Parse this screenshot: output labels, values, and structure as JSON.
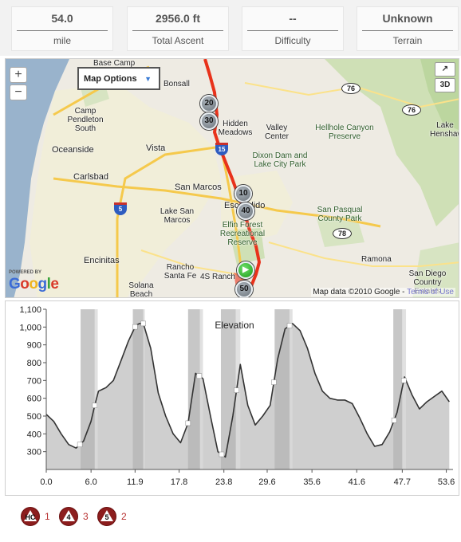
{
  "stats": [
    {
      "value": "54.0",
      "label": "mile"
    },
    {
      "value": "2956.0 ft",
      "label": "Total Ascent"
    },
    {
      "value": "--",
      "label": "Difficulty"
    },
    {
      "value": "Unknown",
      "label": "Terrain"
    }
  ],
  "map": {
    "options_label": "Map Options",
    "zoom_in": "+",
    "zoom_out": "−",
    "expand_label": "↗",
    "view_3d_label": "3D",
    "powered_by": "POWERED BY",
    "google_logo": "Google",
    "attribution": "Map data ©2010 Google - ",
    "terms": "Terms of Use",
    "places": [
      {
        "text": "Base Camp"
      },
      {
        "text": "Bonsall"
      },
      {
        "text": "Camp Pendleton South"
      },
      {
        "text": "Oceanside"
      },
      {
        "text": "Vista"
      },
      {
        "text": "Carlsbad"
      },
      {
        "text": "San Marcos"
      },
      {
        "text": "Lake San Marcos"
      },
      {
        "text": "Encinitas"
      },
      {
        "text": "Rancho Santa Fe"
      },
      {
        "text": "4S Ranch"
      },
      {
        "text": "Solana Beach"
      },
      {
        "text": "Hidden Meadows"
      },
      {
        "text": "Valley Center"
      },
      {
        "text": "Dixon Dam and Lake City Park"
      },
      {
        "text": "Escondido"
      },
      {
        "text": "Elfin Forest Recreational Reserve"
      },
      {
        "text": "Hellhole Canyon Preserve"
      },
      {
        "text": "San Pasqual County Park"
      },
      {
        "text": "Ramona"
      },
      {
        "text": "San Diego Country Estates"
      },
      {
        "text": "Lake Henshaw"
      }
    ],
    "markers": [
      "20",
      "30",
      "10",
      "40",
      "50"
    ],
    "highways": [
      "76",
      "76",
      "78"
    ],
    "interstates": [
      "15",
      "5"
    ]
  },
  "chart_data": {
    "type": "area",
    "title": "Elevation",
    "xlabel": "",
    "ylabel": "",
    "x_ticks": [
      0.0,
      6.0,
      11.9,
      17.8,
      23.8,
      29.6,
      35.6,
      41.6,
      47.7,
      53.6
    ],
    "x_tick_labels": [
      "0.0",
      "6.0",
      "11.9",
      "17.8",
      "23.8",
      "29.6",
      "35.6",
      "41.6",
      "47.7",
      "53.6"
    ],
    "y_ticks": [
      300,
      400,
      500,
      600,
      700,
      800,
      900,
      1000,
      1100
    ],
    "y_tick_labels": [
      "300",
      "400",
      "500",
      "600",
      "700",
      "800",
      "900",
      "1,000",
      "1,100"
    ],
    "xlim": [
      0,
      54.5
    ],
    "ylim": [
      200,
      1100
    ],
    "grid": false,
    "series": [
      {
        "x": [
          0,
          1,
          2,
          3,
          4,
          5,
          6,
          6.5,
          7,
          8,
          9,
          10,
          11,
          12,
          12.5,
          13,
          14,
          15,
          16,
          17,
          18,
          19,
          20,
          21,
          22,
          23,
          24,
          25,
          26,
          27,
          28,
          29,
          30,
          31,
          32,
          33,
          34,
          35,
          36,
          37,
          38,
          39,
          40,
          41,
          42,
          43,
          44,
          45,
          46,
          47,
          48,
          49,
          50,
          51,
          52,
          53,
          54
        ],
        "y": [
          510,
          470,
          400,
          340,
          320,
          360,
          470,
          560,
          640,
          660,
          700,
          810,
          920,
          1010,
          1020,
          1020,
          880,
          630,
          500,
          400,
          350,
          460,
          740,
          710,
          500,
          300,
          270,
          500,
          790,
          560,
          450,
          500,
          560,
          820,
          990,
          1020,
          980,
          880,
          740,
          640,
          600,
          590,
          590,
          570,
          490,
          400,
          330,
          340,
          410,
          520,
          720,
          620,
          540,
          580,
          610,
          640,
          580
        ]
      }
    ],
    "shaded_bands": [
      [
        4.6,
        6.5
      ],
      [
        11.6,
        13.0
      ],
      [
        19.0,
        20.6
      ],
      [
        23.4,
        25.4
      ],
      [
        30.6,
        32.6
      ],
      [
        46.5,
        47.7
      ]
    ],
    "light_bands": [
      [
        6.5,
        6.9
      ],
      [
        13.0,
        13.2
      ],
      [
        20.6,
        21.0
      ],
      [
        25.4,
        26.0
      ],
      [
        32.6,
        33.0
      ],
      [
        47.7,
        48.2
      ]
    ],
    "waypoints_x": [
      4.5,
      6.5,
      11.9,
      13.0,
      19.0,
      20.5,
      23.5,
      25.5,
      30.5,
      32.6,
      46.6,
      47.9
    ]
  },
  "climbs": [
    {
      "category": "HC",
      "icon": "hc-climb-icon",
      "count": "1"
    },
    {
      "category": "4",
      "icon": "cat4-climb-icon",
      "count": "3"
    },
    {
      "category": "5",
      "icon": "cat5-climb-icon",
      "count": "2"
    }
  ],
  "colors": {
    "route": "#e8321b",
    "area_fill": "#cfcfcf",
    "band_dark": "#b4b4b4",
    "band_light": "#d9d9d9",
    "line": "#333333",
    "badge": "#8c1d1d"
  }
}
